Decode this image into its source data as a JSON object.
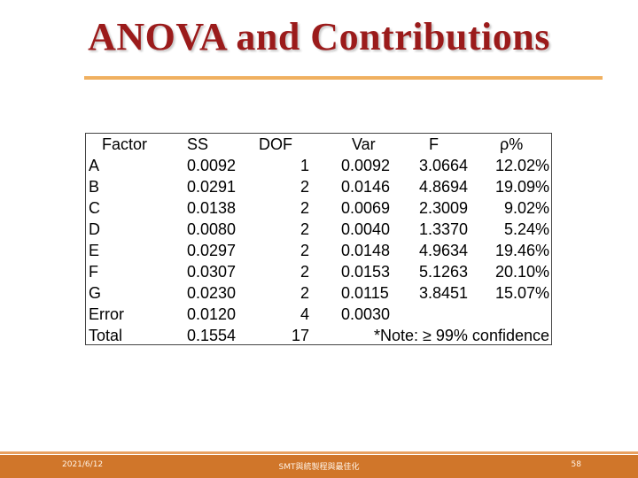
{
  "title": "ANOVA and Contributions",
  "table": {
    "headers": {
      "factor": "Factor",
      "ss": "SS",
      "dof": "DOF",
      "var": "Var",
      "f": "F",
      "rho": "ρ%"
    },
    "rows": [
      {
        "factor": "A",
        "ss": "0.0092",
        "dof": "1",
        "var": "0.0092",
        "f": "3.0664",
        "rho": "12.02%"
      },
      {
        "factor": "B",
        "ss": "0.0291",
        "dof": "2",
        "var": "0.0146",
        "f": "4.8694",
        "rho": "19.09%"
      },
      {
        "factor": "C",
        "ss": "0.0138",
        "dof": "2",
        "var": "0.0069",
        "f": "2.3009",
        "rho": "9.02%"
      },
      {
        "factor": "D",
        "ss": "0.0080",
        "dof": "2",
        "var": "0.0040",
        "f": "1.3370",
        "rho": "5.24%"
      },
      {
        "factor": "E",
        "ss": "0.0297",
        "dof": "2",
        "var": "0.0148",
        "f": "4.9634",
        "rho": "19.46%"
      },
      {
        "factor": "F",
        "ss": "0.0307",
        "dof": "2",
        "var": "0.0153",
        "f": "5.1263",
        "rho": "20.10%"
      },
      {
        "factor": "G",
        "ss": "0.0230",
        "dof": "2",
        "var": "0.0115",
        "f": "3.8451",
        "rho": "15.07%"
      },
      {
        "factor": "Error",
        "ss": "0.0120",
        "dof": "4",
        "var": "0.0030",
        "f": "",
        "rho": ""
      },
      {
        "factor": "Total",
        "ss": "0.1554",
        "dof": "17",
        "var": "",
        "f": "",
        "rho": ""
      }
    ],
    "note": "*Note: ≥ 99% confidence"
  },
  "footer": {
    "date": "2021/6/12",
    "center": "SMT與統製程與最佳化",
    "page": "58"
  },
  "colors": {
    "title": "#9b1b1b",
    "accent_rule": "#f0b060",
    "footer_bar": "#d0762a"
  }
}
